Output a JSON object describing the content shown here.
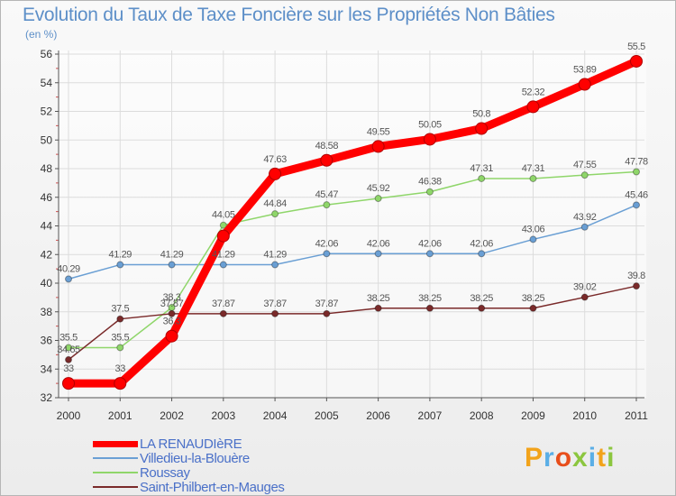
{
  "title": "Evolution du Taux de Taxe Foncière sur les Propriétés Non Bâties",
  "unit": "(en %)",
  "brand": "Proxiti",
  "chart_data": {
    "type": "line",
    "x": [
      "2000",
      "2001",
      "2002",
      "2003",
      "2004",
      "2005",
      "2006",
      "2007",
      "2008",
      "2009",
      "2010",
      "2011"
    ],
    "ylim": [
      32,
      56
    ],
    "yticks": [
      32,
      34,
      36,
      38,
      40,
      42,
      44,
      46,
      48,
      50,
      52,
      54,
      56
    ],
    "grid": true,
    "legend_position": "bottom-left",
    "series": [
      {
        "name": "LA RENAUDIèRE",
        "color": "#ff0000",
        "values": [
          33,
          33,
          36.3,
          43.3,
          47.63,
          48.58,
          49.55,
          50.05,
          50.8,
          52.32,
          53.89,
          55.5
        ],
        "labels": [
          "33",
          "33",
          "36.3",
          "",
          "47.63",
          "48.58",
          "49.55",
          "50.05",
          "50.8",
          "52.32",
          "53.89",
          "55.5"
        ]
      },
      {
        "name": "Villedieu-la-Blouère",
        "color": "#6a9fd4",
        "values": [
          40.29,
          41.29,
          41.29,
          41.29,
          41.29,
          42.06,
          42.06,
          42.06,
          42.06,
          43.06,
          43.92,
          45.46
        ],
        "labels": [
          "40.29",
          "41.29",
          "41.29",
          "41.29",
          "41.29",
          "42.06",
          "42.06",
          "42.06",
          "42.06",
          "43.06",
          "43.92",
          "45.46"
        ]
      },
      {
        "name": "Roussay",
        "color": "#8fd66a",
        "values": [
          35.5,
          35.5,
          38.3,
          44.05,
          44.84,
          45.47,
          45.92,
          46.38,
          47.31,
          47.31,
          47.55,
          47.78
        ],
        "labels": [
          "35.5",
          "35.5",
          "38.3",
          "44.05",
          "44.84",
          "45.47",
          "45.92",
          "46.38",
          "47.31",
          "47.31",
          "47.55",
          "47.78"
        ]
      },
      {
        "name": "Saint-Philbert-en-Mauges",
        "color": "#7a2a2a",
        "values": [
          34.65,
          37.5,
          37.87,
          37.87,
          37.87,
          37.87,
          38.25,
          38.25,
          38.25,
          38.25,
          39.02,
          39.8
        ],
        "labels": [
          "34.65",
          "37.5",
          "37.87",
          "37.87",
          "37.87",
          "37.87",
          "38.25",
          "38.25",
          "38.25",
          "38.25",
          "39.02",
          "39.8"
        ]
      }
    ]
  }
}
